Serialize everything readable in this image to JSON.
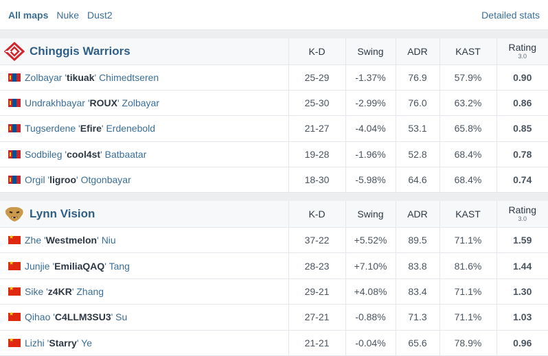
{
  "tabs": [
    {
      "label": "All maps",
      "active": true
    },
    {
      "label": "Nuke",
      "active": false
    },
    {
      "label": "Dust2",
      "active": false
    }
  ],
  "detailed_stats_label": "Detailed stats",
  "columns": {
    "kd": "K-D",
    "swing": "Swing",
    "adr": "ADR",
    "kast": "KAST",
    "rating": "Rating",
    "rating_sub": "3.0"
  },
  "teams": [
    {
      "name": "Chinggis Warriors",
      "logo_icon": "chinggis-warriors-logo",
      "players": [
        {
          "first": "Zolbayar",
          "nick": "tikuak",
          "last": "Chimedtseren",
          "flag": "mongolia-flag",
          "kd": "25-29",
          "swing": "-1.37%",
          "adr": "76.9",
          "kast": "57.9%",
          "rating": "0.90"
        },
        {
          "first": "Undrakhbayar",
          "nick": "ROUX",
          "last": "Zolbayar",
          "flag": "mongolia-flag",
          "kd": "25-30",
          "swing": "-2.99%",
          "adr": "76.0",
          "kast": "63.2%",
          "rating": "0.86"
        },
        {
          "first": "Tugserdene",
          "nick": "Efire",
          "last": "Erdenebold",
          "flag": "mongolia-flag",
          "kd": "21-27",
          "swing": "-4.04%",
          "adr": "53.1",
          "kast": "65.8%",
          "rating": "0.85"
        },
        {
          "first": "Sodbileg",
          "nick": "cool4st",
          "last": "Batbaatar",
          "flag": "mongolia-flag",
          "kd": "19-28",
          "swing": "-1.96%",
          "adr": "52.8",
          "kast": "68.4%",
          "rating": "0.78"
        },
        {
          "first": "Orgil",
          "nick": "ligroo",
          "last": "Otgonbayar",
          "flag": "mongolia-flag",
          "kd": "18-30",
          "swing": "-5.98%",
          "adr": "64.6",
          "kast": "68.4%",
          "rating": "0.74"
        }
      ]
    },
    {
      "name": "Lynn Vision",
      "logo_icon": "lynn-vision-logo",
      "players": [
        {
          "first": "Zhe",
          "nick": "Westmelon",
          "last": "Niu",
          "flag": "china-flag",
          "kd": "37-22",
          "swing": "+5.52%",
          "adr": "89.5",
          "kast": "71.1%",
          "rating": "1.59"
        },
        {
          "first": "Junjie",
          "nick": "EmiliaQAQ",
          "last": "Tang",
          "flag": "china-flag",
          "kd": "28-23",
          "swing": "+7.10%",
          "adr": "83.8",
          "kast": "81.6%",
          "rating": "1.44"
        },
        {
          "first": "Sike",
          "nick": "z4KR",
          "last": "Zhang",
          "flag": "china-flag",
          "kd": "29-21",
          "swing": "+4.08%",
          "adr": "83.4",
          "kast": "71.1%",
          "rating": "1.30"
        },
        {
          "first": "Qihao",
          "nick": "C4LLM3SU3",
          "last": "Su",
          "flag": "china-flag",
          "kd": "27-21",
          "swing": "-0.88%",
          "adr": "71.3",
          "kast": "71.1%",
          "rating": "1.03"
        },
        {
          "first": "Lizhi",
          "nick": "Starry",
          "last": "Ye",
          "flag": "china-flag",
          "kd": "21-21",
          "swing": "-0.04%",
          "adr": "65.6",
          "kast": "78.9%",
          "rating": "0.96"
        }
      ]
    }
  ],
  "colors": {
    "negative": "#c8261f",
    "positive": "#3d9a22",
    "link": "#3a6e99",
    "team_name": "#2f5f88"
  }
}
